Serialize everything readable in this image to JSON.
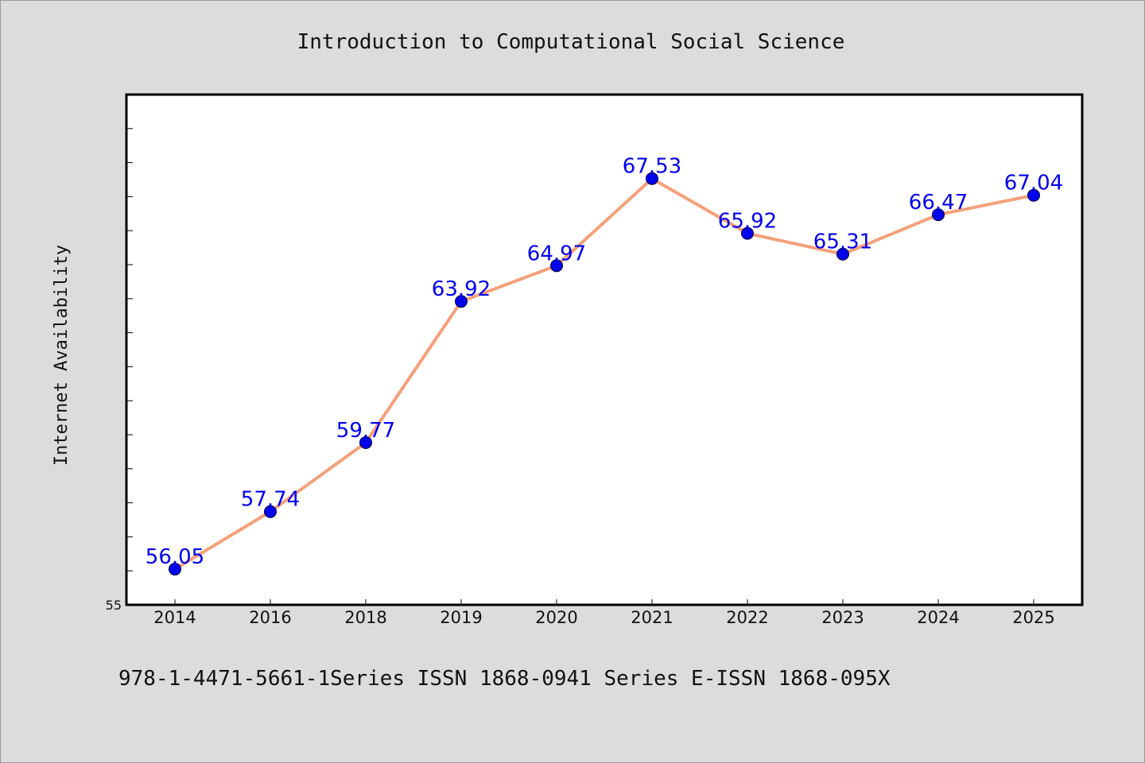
{
  "chart_data": {
    "type": "line",
    "title": "Introduction to Computational Social Science",
    "xlabel": "",
    "ylabel": "Internet Availability",
    "categories": [
      "2014",
      "2016",
      "2018",
      "2019",
      "2020",
      "2021",
      "2022",
      "2023",
      "2024",
      "2025"
    ],
    "series": [
      {
        "values": [
          56.05,
          57.74,
          59.77,
          63.92,
          64.97,
          67.53,
          65.92,
          65.31,
          66.47,
          67.04
        ],
        "labels": [
          "56.05",
          "57.74",
          "59.77",
          "63.92",
          "64.97",
          "67.53",
          "65.92",
          "65.31",
          "66.47",
          "67.04"
        ],
        "line_color": "#f4a07a",
        "marker_color": "#0000ee"
      }
    ],
    "ylim": [
      55,
      70
    ],
    "yticks": [
      55
    ],
    "ytick_labels": [
      "55"
    ],
    "grid": false,
    "legend": "none"
  },
  "footer": {
    "text": "978-1-4471-5661-1Series ISSN 1868-0941 Series E-ISSN 1868-095X"
  },
  "colors": {
    "background": "#dcdcdc",
    "plot_background": "#ffffff"
  }
}
